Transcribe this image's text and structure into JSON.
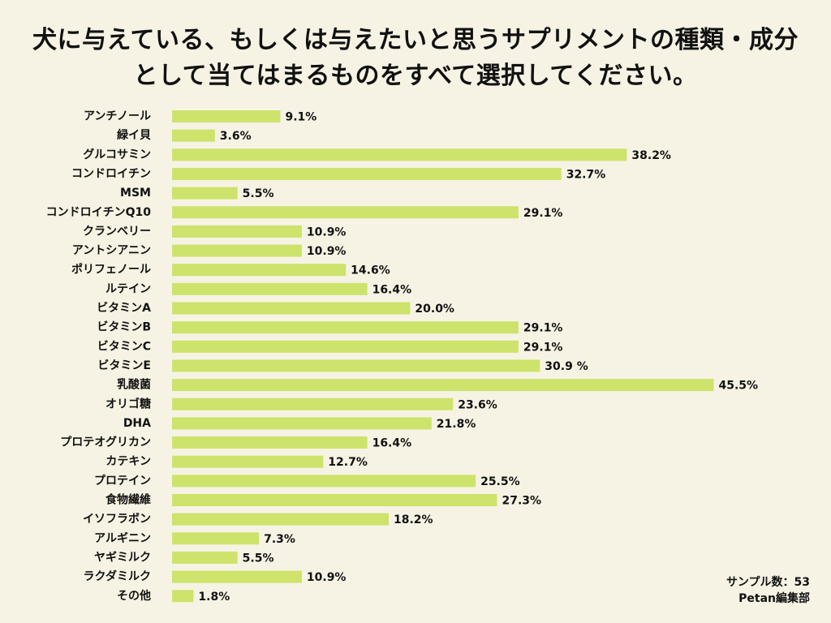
{
  "title_line1": "犬に与えている、もしくは与えたいと思うサプリメントの種類・成分",
  "title_line2": "として当てはまるものをすべて選択してください。",
  "sample_note": "サンプル数：53",
  "source": "Petan編集部",
  "colors": {
    "background": "#f6f3e4",
    "bar": "#cde36b",
    "text": "#111111"
  },
  "chart_data": {
    "type": "bar",
    "orientation": "horizontal",
    "title": "犬に与えている、もしくは与えたいと思うサプリメントの種類・成分として当てはまるものをすべて選択してください。",
    "xlabel": "",
    "ylabel": "",
    "unit": "%",
    "xlim": [
      0,
      50
    ],
    "grid": false,
    "categories": [
      "アンチノール",
      "緑イ貝",
      "グルコサミン",
      "コンドロイチン",
      "MSM",
      "コンドロイチンQ10",
      "クランベリー",
      "アントシアニン",
      "ポリフェノール",
      "ルテイン",
      "ビタミンA",
      "ビタミンB",
      "ビタミンC",
      "ビタミンE",
      "乳酸菌",
      "オリゴ糖",
      "DHA",
      "プロテオグリカン",
      "カテキン",
      "プロテイン",
      "食物繊維",
      "イソフラボン",
      "アルギニン",
      "ヤギミルク",
      "ラクダミルク",
      "その他"
    ],
    "values": [
      9.1,
      3.6,
      38.2,
      32.7,
      5.5,
      29.1,
      10.9,
      10.9,
      14.6,
      16.4,
      20.0,
      29.1,
      29.1,
      30.9,
      45.5,
      23.6,
      21.8,
      16.4,
      12.7,
      25.5,
      27.3,
      18.2,
      7.3,
      5.5,
      10.9,
      1.8
    ],
    "value_labels": [
      "9.1%",
      "3.6%",
      "38.2%",
      "32.7%",
      "5.5%",
      "29.1%",
      "10.9%",
      "10.9%",
      "14.6%",
      "16.4%",
      "20.0%",
      "29.1%",
      "29.1%",
      "30.9 %",
      "45.5%",
      "23.6%",
      "21.8%",
      "16.4%",
      "12.7%",
      "25.5%",
      "27.3%",
      "18.2%",
      "7.3%",
      "5.5%",
      "10.9%",
      "1.8%"
    ]
  }
}
